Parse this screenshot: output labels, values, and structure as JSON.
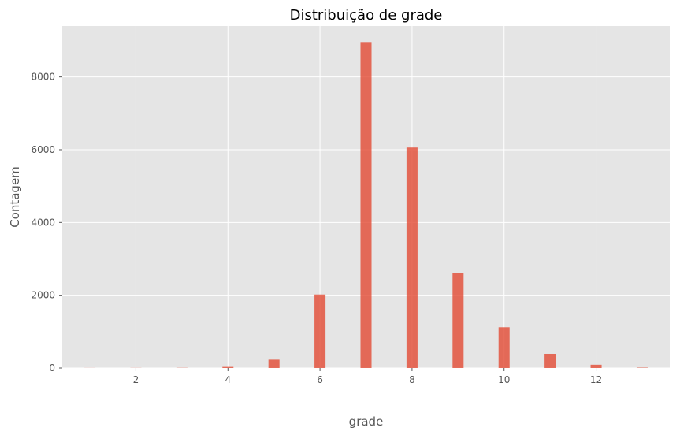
{
  "chart_data": {
    "type": "bar",
    "title": "Distribuição de grade",
    "xlabel": "grade",
    "ylabel": "Contagem",
    "xlim": [
      0.4,
      13.6
    ],
    "ylim": [
      0,
      9400
    ],
    "xticks": [
      2,
      4,
      6,
      8,
      10,
      12
    ],
    "yticks": [
      0,
      2000,
      4000,
      6000,
      8000
    ],
    "bin_width": 0.24,
    "grid": true,
    "colors": {
      "bar": "#E24A33",
      "background": "#E5E5E5",
      "grid": "#FFFFFF"
    },
    "series": [
      {
        "x": [
          1,
          2,
          3,
          4,
          5,
          6,
          7,
          8,
          9,
          10,
          11,
          12,
          13
        ],
        "values": [
          2,
          3,
          5,
          30,
          230,
          2020,
          8960,
          6060,
          2600,
          1120,
          390,
          90,
          10
        ]
      }
    ]
  }
}
